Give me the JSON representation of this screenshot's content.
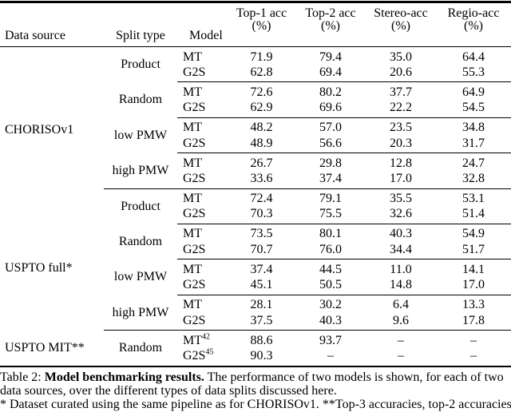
{
  "colors": {
    "text": "#000000",
    "background": "#ffffff",
    "rule": "#000000"
  },
  "table": {
    "header": {
      "data_source": "Data source",
      "split_type": "Split type",
      "model": "Model",
      "acc_cols": [
        {
          "line1": "Top-1 acc",
          "line2": "(%)"
        },
        {
          "line1": "Top-2 acc",
          "line2": "(%)"
        },
        {
          "line1": "Stereo-acc",
          "line2": "(%)"
        },
        {
          "line1": "Regio-acc",
          "line2": "(%)"
        }
      ]
    },
    "groups": [
      {
        "data_source": "CHORISOv1",
        "ds_rowspan": 8,
        "split": "Product",
        "rule": "",
        "rows": [
          {
            "model": "MT",
            "ref": "",
            "values": [
              "71.9",
              "79.4",
              "35.0",
              "64.4"
            ]
          },
          {
            "model": "G2S",
            "ref": "",
            "values": [
              "62.8",
              "69.4",
              "20.6",
              "55.3"
            ]
          }
        ]
      },
      {
        "data_source": "",
        "ds_rowspan": 0,
        "split": "Random",
        "rule": "model",
        "rows": [
          {
            "model": "MT",
            "ref": "",
            "values": [
              "72.6",
              "80.2",
              "37.7",
              "64.9"
            ]
          },
          {
            "model": "G2S",
            "ref": "",
            "values": [
              "62.9",
              "69.6",
              "22.2",
              "54.5"
            ]
          }
        ]
      },
      {
        "data_source": "",
        "ds_rowspan": 0,
        "split": "low PMW",
        "rule": "model",
        "rows": [
          {
            "model": "MT",
            "ref": "",
            "values": [
              "48.2",
              "57.0",
              "23.5",
              "34.8"
            ]
          },
          {
            "model": "G2S",
            "ref": "",
            "values": [
              "48.9",
              "56.6",
              "20.3",
              "31.7"
            ]
          }
        ]
      },
      {
        "data_source": "",
        "ds_rowspan": 0,
        "split": "high PMW",
        "rule": "model",
        "rows": [
          {
            "model": "MT",
            "ref": "",
            "values": [
              "26.7",
              "29.8",
              "12.8",
              "24.7"
            ]
          },
          {
            "model": "G2S",
            "ref": "",
            "values": [
              "33.6",
              "37.4",
              "17.0",
              "32.8"
            ]
          }
        ]
      },
      {
        "data_source": "USPTO full*",
        "ds_rowspan": 8,
        "split": "Product",
        "rule": "split",
        "rows": [
          {
            "model": "MT",
            "ref": "",
            "values": [
              "72.4",
              "79.1",
              "35.5",
              "53.1"
            ]
          },
          {
            "model": "G2S",
            "ref": "",
            "values": [
              "70.3",
              "75.5",
              "32.6",
              "51.4"
            ]
          }
        ]
      },
      {
        "data_source": "",
        "ds_rowspan": 0,
        "split": "Random",
        "rule": "model",
        "rows": [
          {
            "model": "MT",
            "ref": "",
            "values": [
              "73.5",
              "80.1",
              "40.3",
              "54.9"
            ]
          },
          {
            "model": "G2S",
            "ref": "",
            "values": [
              "70.7",
              "76.0",
              "34.4",
              "51.7"
            ]
          }
        ]
      },
      {
        "data_source": "",
        "ds_rowspan": 0,
        "split": "low PMW",
        "rule": "model",
        "rows": [
          {
            "model": "MT",
            "ref": "",
            "values": [
              "37.4",
              "44.5",
              "11.0",
              "14.1"
            ]
          },
          {
            "model": "G2S",
            "ref": "",
            "values": [
              "45.1",
              "50.5",
              "14.8",
              "17.0"
            ]
          }
        ]
      },
      {
        "data_source": "",
        "ds_rowspan": 0,
        "split": "high PMW",
        "rule": "model",
        "rows": [
          {
            "model": "MT",
            "ref": "",
            "values": [
              "28.1",
              "30.2",
              "6.4",
              "13.3"
            ]
          },
          {
            "model": "G2S",
            "ref": "",
            "values": [
              "37.5",
              "40.3",
              "9.6",
              "17.8"
            ]
          }
        ]
      },
      {
        "data_source": "USPTO MIT**",
        "ds_rowspan": 2,
        "split": "Random",
        "rule": "split",
        "rows": [
          {
            "model": "MT",
            "ref": "42",
            "values": [
              "88.6",
              "93.7",
              "–",
              "–"
            ]
          },
          {
            "model": "G2S",
            "ref": "45",
            "values": [
              "90.3",
              "–",
              "–",
              "–"
            ]
          }
        ]
      }
    ]
  },
  "caption": {
    "label": "Table 2:",
    "title": "Model benchmarking results.",
    "text": "The performance of two models is shown, for each of two data sources, over the different types of data splits discussed here.",
    "footnote": "* Dataset curated using the same pipeline as for CHORISOv1. **Top-3 accuracies, top-2 accuracies"
  }
}
